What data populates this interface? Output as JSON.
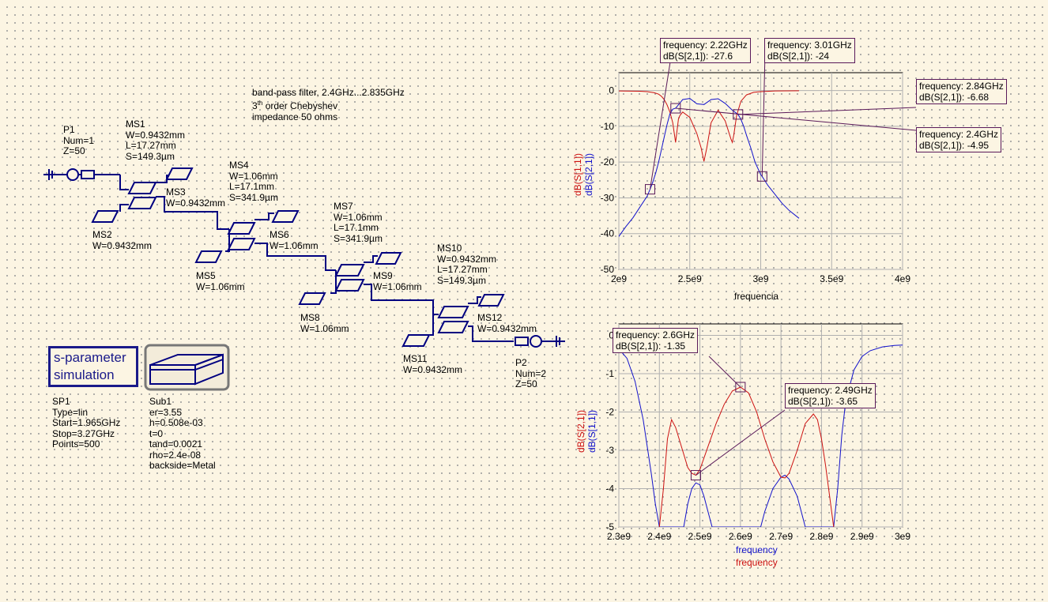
{
  "note": {
    "line1": "band-pass filter, 2.4GHz...2.835GHz",
    "line2a": "3",
    "line2sup": "th",
    "line2b": " order Chebyshev",
    "line3": "impedance 50 ohms"
  },
  "components": {
    "P1": [
      "P1",
      "Num=1",
      "Z=50"
    ],
    "MS1": [
      "MS1",
      "W=0.9432mm",
      "L=17.27mm",
      "S=149.3µm"
    ],
    "MS2": [
      "MS2",
      "W=0.9432mm"
    ],
    "MS3": [
      "MS3",
      "W=0.9432mm"
    ],
    "MS4": [
      "MS4",
      "W=1.06mm",
      "L=17.1mm",
      "S=341.9µm"
    ],
    "MS5": [
      "MS5",
      "W=1.06mm"
    ],
    "MS6": [
      "MS6",
      "W=1.06mm"
    ],
    "MS7": [
      "MS7",
      "W=1.06mm",
      "L=17.1mm",
      "S=341.9µm"
    ],
    "MS8": [
      "MS8",
      "W=1.06mm"
    ],
    "MS9": [
      "MS9",
      "W=1.06mm"
    ],
    "MS10": [
      "MS10",
      "W=0.9432mm",
      "L=17.27mm",
      "S=149.3µm"
    ],
    "MS11": [
      "MS11",
      "W=0.9432mm"
    ],
    "MS12": [
      "MS12",
      "W=0.9432mm"
    ],
    "P2": [
      "P2",
      "Num=2",
      "Z=50"
    ]
  },
  "sim": {
    "title1": "s-parameter",
    "title2": "simulation",
    "props": [
      "SP1",
      "Type=lin",
      "Start=1.965GHz",
      "Stop=3.27GHz",
      "Points=500"
    ]
  },
  "substrate": {
    "props": [
      "Sub1",
      "er=3.55",
      "h=0.508e-03",
      "t=0",
      "tand=0.0021",
      "rho=2.4e-08",
      "backside=Metal"
    ]
  },
  "colors": {
    "s11": "#cc1111",
    "s21": "#1111cc",
    "wire": "#000080",
    "marker_border": "#5a1a5a",
    "background": "#fcf5e3"
  },
  "chart_data": [
    {
      "type": "line",
      "xlabel": "frequencia",
      "ylabels": [
        "dB(S[1,1])",
        "dB(S[2,1])"
      ],
      "xlim": [
        2000000000,
        4000000000
      ],
      "ylim": [
        -50,
        5
      ],
      "xticks": [
        "2e9",
        "2.5e9",
        "3e9",
        "3.5e9",
        "4e9"
      ],
      "yticks": [
        "0",
        "-10",
        "-20",
        "-30",
        "-40",
        "-50"
      ],
      "grid": true,
      "series": [
        {
          "name": "dB(S[1,1])",
          "color": "#cc1111",
          "x": [
            2000000000,
            2150000000,
            2200000000,
            2250000000,
            2280000000,
            2300000000,
            2320000000,
            2340000000,
            2360000000,
            2380000000,
            2400000000,
            2420000000,
            2430000000,
            2450000000,
            2500000000,
            2550000000,
            2580000000,
            2600000000,
            2620000000,
            2650000000,
            2700000000,
            2750000000,
            2790000000,
            2800000000,
            2810000000,
            2830000000,
            2860000000,
            2900000000,
            2950000000,
            3000000000,
            3100000000,
            3270000000
          ],
          "y": [
            -0.1,
            -0.2,
            -0.3,
            -0.6,
            -1.0,
            -1.6,
            -2.5,
            -4.0,
            -6.0,
            -9.0,
            -14.5,
            -8.0,
            -7.0,
            -6.0,
            -7.5,
            -12.0,
            -16.0,
            -19.8,
            -16.0,
            -9.0,
            -5.5,
            -8.5,
            -13.5,
            -14.5,
            -12.5,
            -7.0,
            -3.0,
            -1.2,
            -0.5,
            -0.3,
            -0.1,
            -0.05
          ]
        },
        {
          "name": "dB(S[2,1])",
          "color": "#1111cc",
          "x": [
            1965000000,
            2050000000,
            2100000000,
            2150000000,
            2200000000,
            2220000000,
            2240000000,
            2260000000,
            2280000000,
            2300000000,
            2320000000,
            2340000000,
            2360000000,
            2380000000,
            2400000000,
            2420000000,
            2450000000,
            2500000000,
            2550000000,
            2600000000,
            2650000000,
            2700000000,
            2750000000,
            2800000000,
            2840000000,
            2860000000,
            2880000000,
            2900000000,
            2930000000,
            2960000000,
            3000000000,
            3010000000,
            3050000000,
            3100000000,
            3150000000,
            3200000000,
            3270000000
          ],
          "y": [
            -42.7,
            -38.0,
            -35.5,
            -32.5,
            -29.5,
            -27.6,
            -25.5,
            -23.0,
            -20.0,
            -16.5,
            -13.0,
            -9.5,
            -6.5,
            -5.2,
            -4.95,
            -4.0,
            -2.5,
            -2.2,
            -3.7,
            -3.9,
            -2.5,
            -2.3,
            -3.6,
            -5.5,
            -6.68,
            -8.0,
            -10.0,
            -12.5,
            -16.0,
            -20.0,
            -23.5,
            -24.0,
            -26.5,
            -29.0,
            -31.5,
            -33.5,
            -35.7
          ]
        }
      ],
      "markers": [
        {
          "x": 2220000000,
          "y": -27.6,
          "freq": "2.22GHz",
          "label": "dB(S[2,1])",
          "value": "-27.6"
        },
        {
          "x": 3010000000,
          "y": -24,
          "freq": "3.01GHz",
          "label": "dB(S[2,1])",
          "value": "-24"
        },
        {
          "x": 2840000000,
          "y": -6.68,
          "freq": "2.84GHz",
          "label": "dB(S[2,1])",
          "value": "-6.68"
        },
        {
          "x": 2400000000,
          "y": -4.95,
          "freq": "2.4GHz",
          "label": "dB(S[2,1])",
          "value": "-4.95"
        }
      ]
    },
    {
      "type": "line",
      "xlabel_blue": "frequency",
      "xlabel_red": "frequency",
      "ylabels": [
        "dB(S[2,1])",
        "dB(S[1,1])"
      ],
      "xlim": [
        2300000000,
        3000000000
      ],
      "ylim": [
        -5,
        0.3
      ],
      "xticks": [
        "2.3e9",
        "2.4e9",
        "2.5e9",
        "2.6e9",
        "2.7e9",
        "2.8e9",
        "2.9e9",
        "3e9"
      ],
      "yticks": [
        "0",
        "-1",
        "-2",
        "-3",
        "-4",
        "-5"
      ],
      "grid": true,
      "series": [
        {
          "name": "dB(S[1,1])",
          "color": "#1111cc",
          "x": [
            2300000000,
            2320000000,
            2340000000,
            2360000000,
            2380000000,
            2390000000,
            2400000000,
            2460000000,
            2470000000,
            2480000000,
            2490000000,
            2500000000,
            2510000000,
            2520000000,
            2530000000,
            2650000000,
            2660000000,
            2680000000,
            2700000000,
            2710000000,
            2720000000,
            2740000000,
            2760000000,
            2830000000,
            2840000000,
            2850000000,
            2860000000,
            2880000000,
            2900000000,
            2920000000,
            2950000000,
            2980000000,
            3000000000
          ],
          "y": [
            -0.35,
            -0.6,
            -1.2,
            -2.2,
            -3.6,
            -4.4,
            -5.0,
            -5.0,
            -4.4,
            -4.0,
            -3.85,
            -3.9,
            -4.2,
            -4.6,
            -5.0,
            -5.0,
            -4.6,
            -4.0,
            -3.7,
            -3.65,
            -3.75,
            -4.2,
            -5.0,
            -5.0,
            -4.0,
            -2.6,
            -1.7,
            -0.9,
            -0.55,
            -0.4,
            -0.3,
            -0.26,
            -0.25
          ]
        },
        {
          "name": "dB(S[2,1])",
          "color": "#cc1111",
          "x": [
            2400000000,
            2410000000,
            2420000000,
            2430000000,
            2440000000,
            2460000000,
            2470000000,
            2480000000,
            2490000000,
            2500000000,
            2520000000,
            2540000000,
            2560000000,
            2580000000,
            2600000000,
            2620000000,
            2640000000,
            2660000000,
            2680000000,
            2700000000,
            2710000000,
            2720000000,
            2740000000,
            2760000000,
            2780000000,
            2790000000,
            2800000000,
            2810000000,
            2820000000,
            2830000000
          ],
          "y": [
            -5.0,
            -4.0,
            -2.7,
            -2.2,
            -2.4,
            -3.1,
            -3.45,
            -3.6,
            -3.65,
            -3.5,
            -2.9,
            -2.3,
            -1.8,
            -1.45,
            -1.35,
            -1.5,
            -2.0,
            -2.7,
            -3.3,
            -3.7,
            -3.72,
            -3.6,
            -3.0,
            -2.3,
            -2.05,
            -2.2,
            -2.7,
            -3.4,
            -4.2,
            -5.0
          ]
        }
      ],
      "markers": [
        {
          "x": 2600000000,
          "y": -1.35,
          "freq": "2.6GHz",
          "label": "dB(S[2,1])",
          "value": "-1.35"
        },
        {
          "x": 2490000000,
          "y": -3.65,
          "freq": "2.49GHz",
          "label": "dB(S[2,1])",
          "value": "-3.65"
        }
      ]
    }
  ]
}
